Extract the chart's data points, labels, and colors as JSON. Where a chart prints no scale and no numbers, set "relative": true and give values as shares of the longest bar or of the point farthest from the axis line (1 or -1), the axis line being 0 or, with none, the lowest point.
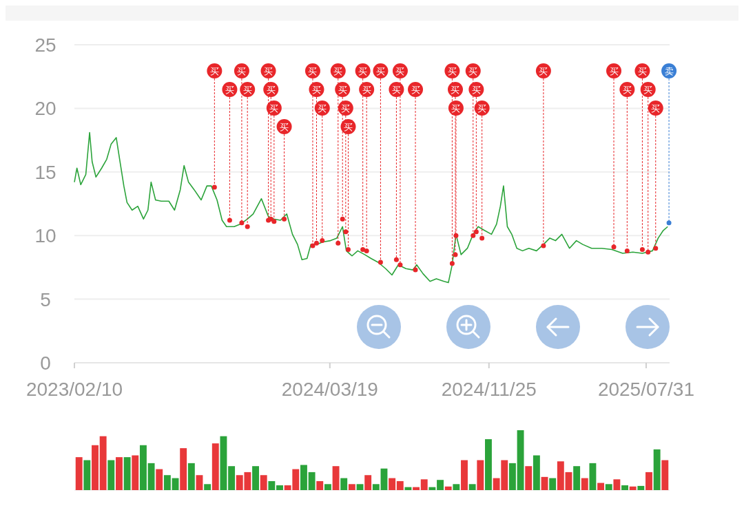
{
  "chart_data": [
    {
      "type": "line",
      "xlim": [
        "2023-02-10",
        "2025-09-06"
      ],
      "ylim": [
        0,
        25
      ],
      "yticks": [
        0,
        5,
        10,
        15,
        20,
        25
      ],
      "xticks": [
        {
          "value": "2023-02-10",
          "label": "2023/02/10"
        },
        {
          "value": "2024-03-19",
          "label": "2024/03/19"
        },
        {
          "value": "2024-11-25",
          "label": "2024/11/25"
        },
        {
          "value": "2025-07-31",
          "label": "2025/07/31"
        }
      ],
      "grid": "y",
      "series": [
        {
          "type": "line",
          "color": "#2ba33a",
          "x": [
            "2023-02-10",
            "2023-02-14",
            "2023-02-20",
            "2023-02-28",
            "2023-03-06",
            "2023-03-10",
            "2023-03-16",
            "2023-03-25",
            "2023-04-02",
            "2023-04-09",
            "2023-04-17",
            "2023-04-23",
            "2023-04-29",
            "2023-05-04",
            "2023-05-12",
            "2023-05-21",
            "2023-05-30",
            "2023-06-06",
            "2023-06-11",
            "2023-06-18",
            "2023-06-27",
            "2023-07-09",
            "2023-07-18",
            "2023-07-27",
            "2023-08-02",
            "2023-08-09",
            "2023-08-18",
            "2023-08-29",
            "2023-09-07",
            "2023-09-14",
            "2023-09-23",
            "2023-10-01",
            "2023-10-08",
            "2023-10-20",
            "2023-10-30",
            "2023-11-10",
            "2023-11-19",
            "2023-12-02",
            "2023-12-13",
            "2023-12-22",
            "2024-01-01",
            "2024-01-11",
            "2024-01-20",
            "2024-01-28",
            "2024-02-04",
            "2024-02-12",
            "2024-02-18",
            "2024-02-27",
            "2024-03-08",
            "2024-03-20",
            "2024-03-30",
            "2024-04-08",
            "2024-04-14",
            "2024-04-23",
            "2024-05-02",
            "2024-05-13",
            "2024-05-23",
            "2024-06-03",
            "2024-06-15",
            "2024-06-25",
            "2024-07-05",
            "2024-07-17",
            "2024-07-28",
            "2024-08-03",
            "2024-08-13",
            "2024-08-24",
            "2024-09-03",
            "2024-09-15",
            "2024-09-22",
            "2024-09-28",
            "2024-10-04",
            "2024-10-12",
            "2024-10-22",
            "2024-10-31",
            "2024-11-08",
            "2024-11-18",
            "2024-11-29",
            "2024-12-07",
            "2024-12-13",
            "2024-12-18",
            "2024-12-24",
            "2024-12-31",
            "2025-01-08",
            "2025-01-17",
            "2025-01-27",
            "2025-02-08",
            "2025-02-19",
            "2025-03-01",
            "2025-03-10",
            "2025-03-20",
            "2025-04-01",
            "2025-04-12",
            "2025-04-22",
            "2025-05-06",
            "2025-05-22",
            "2025-06-07",
            "2025-06-24",
            "2025-07-10",
            "2025-07-25",
            "2025-08-10",
            "2025-08-19",
            "2025-08-27",
            "2025-09-03"
          ],
          "values": [
            14.2,
            15.3,
            14.0,
            14.8,
            18.1,
            15.8,
            14.6,
            15.3,
            16.0,
            17.2,
            17.7,
            15.8,
            13.9,
            12.6,
            12.0,
            12.3,
            11.3,
            12.0,
            14.2,
            12.8,
            12.7,
            12.7,
            12.0,
            13.6,
            15.5,
            14.2,
            13.6,
            12.8,
            13.9,
            13.9,
            12.8,
            11.2,
            10.7,
            10.7,
            10.9,
            11.3,
            11.7,
            12.9,
            11.5,
            11.3,
            11.2,
            11.7,
            10.1,
            9.3,
            8.1,
            8.2,
            9.3,
            9.3,
            9.5,
            9.6,
            9.8,
            10.7,
            8.8,
            8.4,
            8.8,
            8.5,
            8.2,
            7.9,
            7.4,
            6.9,
            7.7,
            7.4,
            7.3,
            7.7,
            7.0,
            6.4,
            6.6,
            6.4,
            6.3,
            7.7,
            10.1,
            8.5,
            9.0,
            10.1,
            10.7,
            10.4,
            10.1,
            10.9,
            12.3,
            13.9,
            10.7,
            10.1,
            9.0,
            8.8,
            9.0,
            8.8,
            9.3,
            9.8,
            9.6,
            10.1,
            9.0,
            9.6,
            9.3,
            9.0,
            9.0,
            8.9,
            8.6,
            8.7,
            8.6,
            8.8,
            9.8,
            10.4,
            10.7
          ]
        },
        {
          "type": "scatter",
          "color": "#e8262a",
          "x": [
            "2023-09-19",
            "2023-10-13",
            "2023-11-01",
            "2023-11-10",
            "2023-12-13",
            "2023-12-17",
            "2023-12-22",
            "2024-01-07",
            "2024-02-21",
            "2024-02-27",
            "2024-03-07",
            "2024-04-01",
            "2024-04-08",
            "2024-04-13",
            "2024-04-17",
            "2024-05-10",
            "2024-05-16",
            "2024-06-07",
            "2024-07-02",
            "2024-07-08",
            "2024-08-01",
            "2024-09-28",
            "2024-10-03",
            "2024-10-04",
            "2024-10-31",
            "2024-11-05",
            "2024-11-14",
            "2025-02-19",
            "2025-06-10",
            "2025-07-01",
            "2025-07-25",
            "2025-08-03",
            "2025-08-15"
          ],
          "values": [
            13.8,
            11.2,
            11.0,
            10.7,
            11.2,
            11.3,
            11.1,
            11.3,
            9.2,
            9.4,
            9.6,
            9.4,
            11.3,
            10.3,
            8.9,
            8.9,
            8.8,
            7.9,
            8.1,
            7.7,
            7.3,
            7.8,
            8.5,
            10.0,
            10.0,
            10.3,
            9.8,
            9.2,
            9.1,
            8.8,
            8.9,
            8.7,
            9.0
          ]
        },
        {
          "type": "scatter",
          "color": "#3a7fd5",
          "x": [
            "2025-09-05"
          ],
          "values": [
            11.0
          ]
        }
      ],
      "annotations": [
        {
          "text": "买",
          "x": "2023-09-19",
          "y": 13.8
        },
        {
          "text": "买",
          "x": "2023-10-13",
          "y": 11.2
        },
        {
          "text": "买",
          "x": "2023-11-01",
          "y": 11.0
        },
        {
          "text": "买",
          "x": "2023-11-10",
          "y": 10.7
        },
        {
          "text": "买",
          "x": "2023-12-13",
          "y": 11.2
        },
        {
          "text": "买",
          "x": "2023-12-17",
          "y": 11.3
        },
        {
          "text": "买",
          "x": "2023-12-22",
          "y": 11.1
        },
        {
          "text": "买",
          "x": "2024-01-07",
          "y": 11.3
        },
        {
          "text": "买",
          "x": "2024-02-21",
          "y": 9.2
        },
        {
          "text": "买",
          "x": "2024-02-27",
          "y": 9.4
        },
        {
          "text": "买",
          "x": "2024-03-07",
          "y": 9.6
        },
        {
          "text": "买",
          "x": "2024-04-01",
          "y": 9.4
        },
        {
          "text": "买",
          "x": "2024-04-08",
          "y": 11.3
        },
        {
          "text": "买",
          "x": "2024-04-13",
          "y": 10.3
        },
        {
          "text": "买",
          "x": "2024-04-17",
          "y": 8.9
        },
        {
          "text": "买",
          "x": "2024-05-10",
          "y": 8.9
        },
        {
          "text": "买",
          "x": "2024-05-16",
          "y": 8.8
        },
        {
          "text": "买",
          "x": "2024-06-07",
          "y": 7.9
        },
        {
          "text": "买",
          "x": "2024-07-02",
          "y": 8.1
        },
        {
          "text": "买",
          "x": "2024-07-08",
          "y": 7.7
        },
        {
          "text": "买",
          "x": "2024-08-01",
          "y": 7.3
        },
        {
          "text": "买",
          "x": "2024-09-28",
          "y": 7.8
        },
        {
          "text": "买",
          "x": "2024-10-03",
          "y": 8.5
        },
        {
          "text": "买",
          "x": "2024-10-04",
          "y": 10.0
        },
        {
          "text": "买",
          "x": "2024-10-31",
          "y": 10.0
        },
        {
          "text": "买",
          "x": "2024-11-05",
          "y": 10.3
        },
        {
          "text": "买",
          "x": "2024-11-14",
          "y": 9.8
        },
        {
          "text": "买",
          "x": "2025-02-19",
          "y": 9.2
        },
        {
          "text": "买",
          "x": "2025-06-10",
          "y": 9.1
        },
        {
          "text": "买",
          "x": "2025-07-01",
          "y": 8.8
        },
        {
          "text": "买",
          "x": "2025-07-25",
          "y": 8.9
        },
        {
          "text": "买",
          "x": "2025-08-03",
          "y": 8.7
        },
        {
          "text": "买",
          "x": "2025-08-15",
          "y": 9.0
        },
        {
          "text": "卖",
          "x": "2025-09-05",
          "y": 11.0
        }
      ]
    },
    {
      "type": "bar",
      "relative": true,
      "categories": [
        null,
        null,
        null,
        null,
        null,
        null,
        null,
        null,
        null,
        null,
        null,
        null,
        null,
        null,
        null,
        null,
        null,
        null,
        null,
        null,
        null,
        null,
        null,
        null,
        null,
        null,
        null,
        null,
        null,
        null,
        null,
        null,
        null,
        null,
        null,
        null,
        null,
        null,
        null,
        null,
        null,
        null,
        null,
        null,
        null,
        null,
        null,
        null,
        null,
        null,
        null,
        null,
        null,
        null,
        null,
        null,
        null,
        null,
        null,
        null,
        null,
        null,
        null,
        null,
        null,
        null,
        null,
        null,
        null,
        null,
        null,
        null,
        null,
        null
      ],
      "values": [
        0.55,
        0.5,
        0.75,
        0.9,
        0.5,
        0.55,
        0.55,
        0.58,
        0.75,
        0.45,
        0.35,
        0.25,
        0.2,
        0.7,
        0.45,
        0.25,
        0.1,
        0.78,
        0.9,
        0.4,
        0.25,
        0.3,
        0.4,
        0.25,
        0.15,
        0.08,
        0.08,
        0.35,
        0.42,
        0.3,
        0.15,
        0.1,
        0.4,
        0.2,
        0.1,
        0.1,
        0.25,
        0.1,
        0.36,
        0.2,
        0.15,
        0.05,
        0.05,
        0.18,
        0.05,
        0.17,
        0.06,
        0.1,
        0.5,
        0.1,
        0.5,
        0.85,
        0.2,
        0.5,
        0.45,
        1,
        0.4,
        0.58,
        0.22,
        0.2,
        0.48,
        0.3,
        0.4,
        0.2,
        0.45,
        0.12,
        0.1,
        0.18,
        0.08,
        0.06,
        0.07,
        0.3,
        0.68,
        0.5
      ],
      "colors": [
        "#e8383a",
        "#2ba33a",
        "#e8383a",
        "#e8383a",
        "#2ba33a",
        "#e8383a",
        "#2ba33a",
        "#e8383a",
        "#2ba33a",
        "#2ba33a",
        "#e8383a",
        "#2ba33a",
        "#2ba33a",
        "#e8383a",
        "#2ba33a",
        "#e8383a",
        "#2ba33a",
        "#e8383a",
        "#2ba33a",
        "#2ba33a",
        "#e8383a",
        "#e8383a",
        "#2ba33a",
        "#e8383a",
        "#2ba33a",
        "#2ba33a",
        "#e8383a",
        "#e8383a",
        "#2ba33a",
        "#2ba33a",
        "#e8383a",
        "#2ba33a",
        "#e8383a",
        "#2ba33a",
        "#e8383a",
        "#2ba33a",
        "#e8383a",
        "#2ba33a",
        "#2ba33a",
        "#e8383a",
        "#e8383a",
        "#2ba33a",
        "#e8383a",
        "#e8383a",
        "#2ba33a",
        "#2ba33a",
        "#e8383a",
        "#2ba33a",
        "#e8383a",
        "#2ba33a",
        "#e8383a",
        "#2ba33a",
        "#e8383a",
        "#e8383a",
        "#2ba33a",
        "#2ba33a",
        "#e8383a",
        "#2ba33a",
        "#e8383a",
        "#2ba33a",
        "#e8383a",
        "#e8383a",
        "#2ba33a",
        "#e8383a",
        "#2ba33a",
        "#e8383a",
        "#2ba33a",
        "#e8383a",
        "#2ba33a",
        "#e8383a",
        "#2ba33a",
        "#e8383a",
        "#2ba33a",
        "#e8383a"
      ]
    }
  ]
}
